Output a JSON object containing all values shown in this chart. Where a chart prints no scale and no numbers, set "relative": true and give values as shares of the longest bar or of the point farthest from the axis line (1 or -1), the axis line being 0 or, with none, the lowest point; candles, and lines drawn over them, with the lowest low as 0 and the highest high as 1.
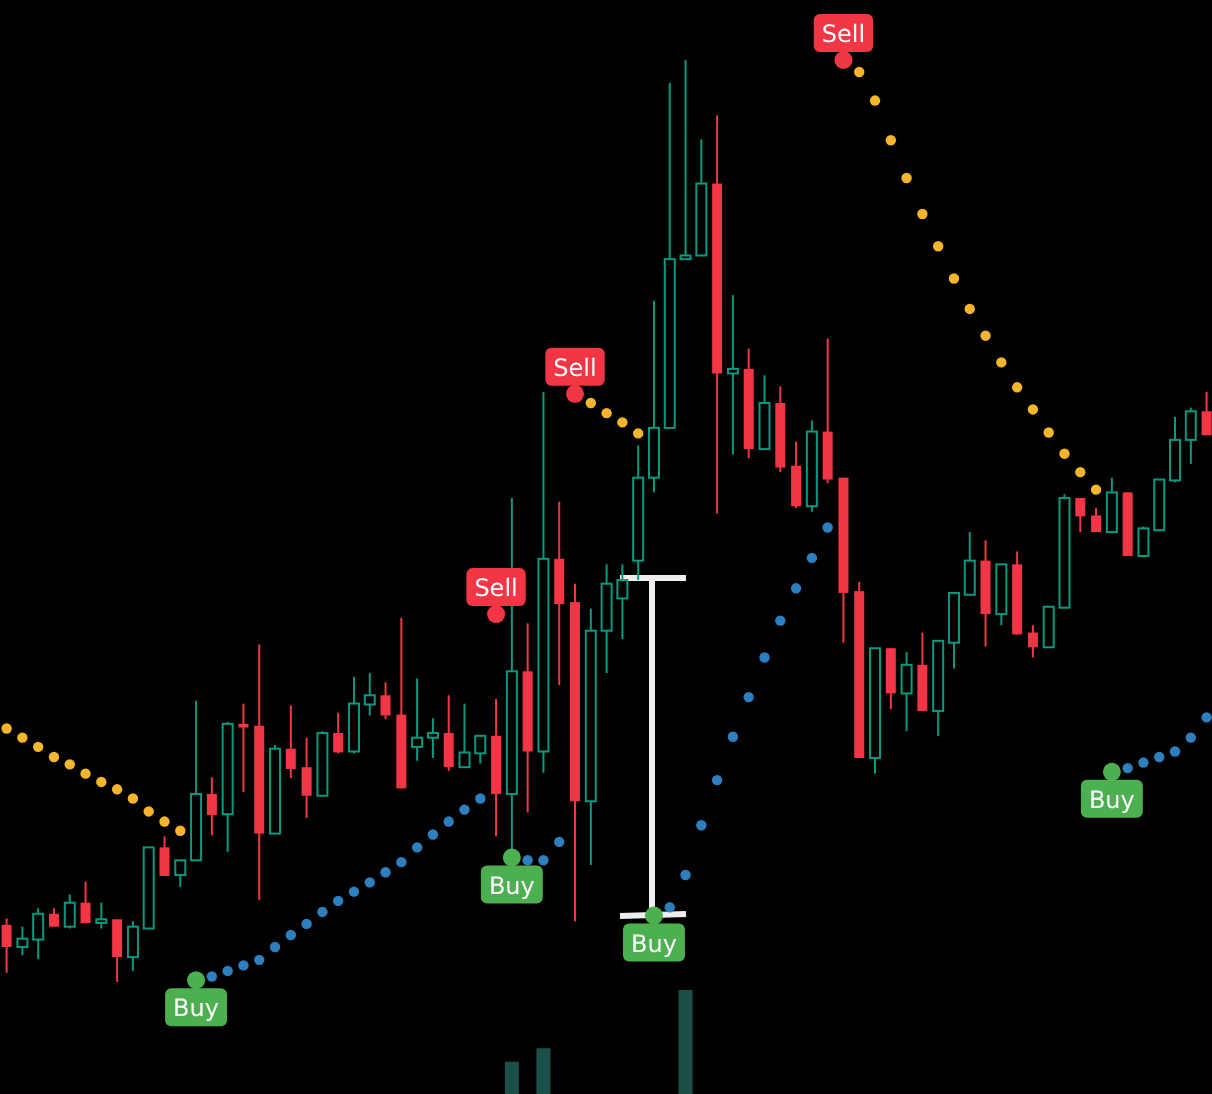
{
  "chart_data": [
    {
      "type": "candlestick",
      "relative": true,
      "marker": "circle",
      "categories": [
        null,
        null,
        null,
        null,
        null,
        null,
        null,
        null,
        null,
        null,
        null,
        null,
        null,
        null,
        null,
        null,
        null,
        null,
        null,
        null,
        null,
        null,
        null,
        null,
        null,
        null,
        null,
        null,
        null,
        null,
        null,
        null,
        null,
        null,
        null,
        null,
        null,
        null,
        null,
        null,
        null,
        null,
        null,
        null,
        null,
        null,
        null,
        null,
        null,
        null,
        null,
        null,
        null,
        null,
        null,
        null,
        null,
        null,
        null,
        null,
        null,
        null,
        null,
        null,
        null,
        null,
        null,
        null,
        null,
        null,
        null,
        null,
        null,
        null,
        null,
        null,
        null
      ],
      "ohlc": [
        [
          0.062,
          0.069,
          0.01,
          0.038
        ],
        [
          0.038,
          0.06,
          0.029,
          0.047
        ],
        [
          0.046,
          0.08,
          0.025,
          0.074
        ],
        [
          0.074,
          0.08,
          0.06,
          0.06
        ],
        [
          0.06,
          0.095,
          0.058,
          0.086
        ],
        [
          0.086,
          0.109,
          0.064,
          0.064
        ],
        [
          0.064,
          0.086,
          0.058,
          0.068
        ],
        [
          0.068,
          0.068,
          0,
          0.027
        ],
        [
          0.027,
          0.066,
          0.012,
          0.06
        ],
        [
          0.058,
          0.146,
          0.058,
          0.146
        ],
        [
          0.146,
          0.158,
          0.115,
          0.115
        ],
        [
          0.116,
          0.132,
          0.103,
          0.132
        ],
        [
          0.132,
          0.305,
          0.132,
          0.204
        ],
        [
          0.204,
          0.222,
          0.159,
          0.181
        ],
        [
          0.182,
          0.282,
          0.141,
          0.28
        ],
        [
          0.28,
          0.302,
          0.206,
          0.276
        ],
        [
          0.278,
          0.366,
          0.089,
          0.161
        ],
        [
          0.161,
          0.257,
          0.161,
          0.253
        ],
        [
          0.253,
          0.3,
          0.221,
          0.231
        ],
        [
          0.233,
          0.265,
          0.178,
          0.202
        ],
        [
          0.202,
          0.272,
          0.202,
          0.27
        ],
        [
          0.27,
          0.292,
          0.248,
          0.249
        ],
        [
          0.25,
          0.331,
          0.248,
          0.302
        ],
        [
          0.301,
          0.335,
          0.289,
          0.311
        ],
        [
          0.311,
          0.325,
          0.285,
          0.289
        ],
        [
          0.29,
          0.395,
          0.21,
          0.21
        ],
        [
          0.255,
          0.329,
          0.24,
          0.265
        ],
        [
          0.265,
          0.286,
          0.243,
          0.27
        ],
        [
          0.27,
          0.311,
          0.229,
          0.233
        ],
        [
          0.233,
          0.302,
          0.233,
          0.249
        ],
        [
          0.248,
          0.267,
          0.237,
          0.267
        ],
        [
          0.267,
          0.307,
          0.158,
          0.204
        ],
        [
          0.204,
          0.525,
          0.139,
          0.337
        ],
        [
          0.337,
          0.389,
          0.184,
          0.25
        ],
        [
          0.25,
          0.64,
          0.227,
          0.459
        ],
        [
          0.459,
          0.521,
          0.322,
          0.41
        ],
        [
          0.412,
          0.432,
          0.066,
          0.196
        ],
        [
          0.196,
          0.405,
          0.127,
          0.381
        ],
        [
          0.381,
          0.453,
          0.335,
          0.432
        ],
        [
          0.416,
          0.453,
          0.372,
          0.436
        ],
        [
          0.457,
          0.582,
          0.436,
          0.547
        ],
        [
          0.547,
          0.739,
          0.531,
          0.601
        ],
        [
          0.601,
          0.975,
          0.601,
          0.784
        ],
        [
          0.784,
          1,
          0.784,
          0.788
        ],
        [
          0.788,
          0.914,
          0.788,
          0.866
        ],
        [
          0.866,
          0.94,
          0.508,
          0.66
        ],
        [
          0.66,
          0.745,
          0.572,
          0.665
        ],
        [
          0.665,
          0.687,
          0.568,
          0.578
        ],
        [
          0.578,
          0.658,
          0.578,
          0.628
        ],
        [
          0.628,
          0.646,
          0.553,
          0.558
        ],
        [
          0.56,
          0.586,
          0.514,
          0.516
        ],
        [
          0.516,
          0.609,
          0.51,
          0.597
        ],
        [
          0.597,
          0.698,
          0.541,
          0.545
        ],
        [
          0.547,
          0.547,
          0.368,
          0.422
        ],
        [
          0.424,
          0.434,
          0.243,
          0.243
        ],
        [
          0.243,
          0.362,
          0.226,
          0.362
        ],
        [
          0.362,
          0.362,
          0.296,
          0.313
        ],
        [
          0.313,
          0.358,
          0.272,
          0.344
        ],
        [
          0.344,
          0.379,
          0.294,
          0.294
        ],
        [
          0.294,
          0.37,
          0.267,
          0.37
        ],
        [
          0.368,
          0.422,
          0.34,
          0.422
        ],
        [
          0.42,
          0.488,
          0.42,
          0.457
        ],
        [
          0.457,
          0.479,
          0.364,
          0.399
        ],
        [
          0.399,
          0.453,
          0.387,
          0.453
        ],
        [
          0.453,
          0.467,
          0.377,
          0.377
        ],
        [
          0.379,
          0.387,
          0.352,
          0.363
        ],
        [
          0.363,
          0.407,
          0.363,
          0.407
        ],
        [
          0.406,
          0.529,
          0.406,
          0.525
        ],
        [
          0.525,
          0.525,
          0.488,
          0.505
        ],
        [
          0.506,
          0.514,
          0.488,
          0.488
        ],
        [
          0.488,
          0.547,
          0.488,
          0.531
        ],
        [
          0.531,
          0.531,
          0.462,
          0.462
        ],
        [
          0.462,
          0.494,
          0.462,
          0.492
        ],
        [
          0.49,
          0.545,
          0.49,
          0.545
        ],
        [
          0.544,
          0.613,
          0.542,
          0.588
        ],
        [
          0.588,
          0.623,
          0.562,
          0.619
        ],
        [
          0.619,
          0.64,
          0.593,
          0.593
        ]
      ],
      "colors": [
        "#f23645",
        "#089981",
        "#089981",
        "#f23645",
        "#089981",
        "#f23645",
        "#089981",
        "#f23645",
        "#089981",
        "#089981",
        "#f23645",
        "#089981",
        "#089981",
        "#f23645",
        "#089981",
        "#f23645",
        "#f23645",
        "#089981",
        "#f23645",
        "#f23645",
        "#089981",
        "#f23645",
        "#089981",
        "#089981",
        "#f23645",
        "#f23645",
        "#089981",
        "#089981",
        "#f23645",
        "#089981",
        "#089981",
        "#f23645",
        "#089981",
        "#f23645",
        "#089981",
        "#f23645",
        "#f23645",
        "#089981",
        "#089981",
        "#089981",
        "#089981",
        "#089981",
        "#089981",
        "#089981",
        "#089981",
        "#f23645",
        "#089981",
        "#f23645",
        "#089981",
        "#f23645",
        "#f23645",
        "#089981",
        "#f23645",
        "#f23645",
        "#f23645",
        "#089981",
        "#f23645",
        "#089981",
        "#f23645",
        "#089981",
        "#089981",
        "#089981",
        "#f23645",
        "#089981",
        "#f23645",
        "#f23645",
        "#089981",
        "#089981",
        "#f23645",
        "#f23645",
        "#089981",
        "#f23645",
        "#089981",
        "#089981",
        "#089981",
        "#089981",
        "#f23645"
      ],
      "series": [
        {
          "type": "scatter",
          "color": "#f5b52c",
          "values": [
            0.275,
            0.265,
            0.255,
            0.244,
            0.236,
            0.226,
            0.217,
            0.209,
            0.199,
            0.185,
            0.174,
            0.164,
            null,
            null,
            null,
            null,
            null,
            null,
            null,
            null,
            null,
            null,
            null,
            null,
            null,
            null,
            null,
            null,
            null,
            null,
            null,
            null,
            null,
            null,
            null,
            null,
            null,
            0.628,
            0.617,
            0.607,
            0.595,
            null,
            null,
            null,
            null,
            null,
            null,
            null,
            null,
            null,
            null,
            null,
            null,
            null,
            0.987,
            0.956,
            0.913,
            0.872,
            0.833,
            0.798,
            0.763,
            0.73,
            0.701,
            0.672,
            0.645,
            0.621,
            0.596,
            0.573,
            0.553,
            0.534,
            null,
            null,
            null,
            null,
            null,
            null,
            null
          ]
        },
        {
          "type": "scatter",
          "color": "#2e7fc0",
          "values": [
            null,
            null,
            null,
            null,
            null,
            null,
            null,
            null,
            null,
            null,
            null,
            null,
            null,
            0.006,
            0.012,
            0.018,
            0.024,
            0.038,
            0.051,
            0.063,
            0.076,
            0.088,
            0.098,
            0.108,
            0.119,
            0.13,
            0.146,
            0.16,
            0.174,
            0.187,
            0.199,
            null,
            null,
            0.132,
            0.132,
            0.152,
            null,
            null,
            null,
            null,
            null,
            null,
            0.081,
            0.116,
            0.17,
            0.219,
            0.266,
            0.309,
            0.352,
            0.392,
            0.427,
            0.46,
            0.493,
            null,
            null,
            null,
            null,
            null,
            null,
            null,
            null,
            null,
            null,
            null,
            null,
            null,
            null,
            null,
            null,
            null,
            null,
            0.232,
            0.238,
            0.244,
            0.25,
            0.265,
            0.287
          ]
        },
        {
          "name": "Buy",
          "type": "scatter",
          "color": "#4caf50",
          "values": [
            null,
            null,
            null,
            null,
            null,
            null,
            null,
            null,
            null,
            null,
            null,
            null,
            0.002,
            null,
            null,
            null,
            null,
            null,
            null,
            null,
            null,
            null,
            null,
            null,
            null,
            null,
            null,
            null,
            null,
            null,
            null,
            null,
            0.135,
            null,
            null,
            null,
            null,
            null,
            null,
            null,
            null,
            0.072,
            null,
            null,
            null,
            null,
            null,
            null,
            null,
            null,
            null,
            null,
            null,
            null,
            null,
            null,
            null,
            null,
            null,
            null,
            null,
            null,
            null,
            null,
            null,
            null,
            null,
            null,
            null,
            null,
            0.228,
            null,
            null,
            null,
            null,
            null,
            null
          ]
        },
        {
          "name": "Sell",
          "type": "scatter",
          "color": "#f23645",
          "values": [
            null,
            null,
            null,
            null,
            null,
            null,
            null,
            null,
            null,
            null,
            null,
            null,
            null,
            null,
            null,
            null,
            null,
            null,
            null,
            null,
            null,
            null,
            null,
            null,
            null,
            null,
            null,
            null,
            null,
            null,
            null,
            0.399,
            null,
            null,
            null,
            null,
            0.638,
            null,
            null,
            null,
            null,
            null,
            null,
            null,
            null,
            null,
            null,
            null,
            null,
            null,
            null,
            null,
            null,
            1,
            null,
            null,
            null,
            null,
            null,
            null,
            null,
            null,
            null,
            null,
            null,
            null,
            null,
            null,
            null,
            null,
            null,
            null,
            null,
            null,
            null,
            null,
            null
          ]
        }
      ]
    },
    {
      "type": "bar",
      "relative": true,
      "color": "#1b4f47",
      "categories": [
        null,
        null,
        null,
        null,
        null,
        null,
        null,
        null,
        null,
        null,
        null,
        null,
        null,
        null,
        null,
        null,
        null,
        null,
        null,
        null,
        null,
        null,
        null,
        null,
        null,
        null,
        null,
        null,
        null,
        null,
        null,
        null,
        null,
        null,
        null,
        null,
        null,
        null,
        null,
        null,
        null,
        null,
        null,
        null,
        null,
        null,
        null,
        null,
        null,
        null,
        null,
        null,
        null,
        null,
        null,
        null,
        null,
        null,
        null,
        null,
        null,
        null,
        null,
        null,
        null,
        null,
        null,
        null,
        null,
        null,
        null,
        null,
        null,
        null,
        null,
        null,
        null
      ],
      "values": [
        null,
        null,
        null,
        null,
        null,
        null,
        null,
        null,
        null,
        null,
        null,
        null,
        null,
        null,
        null,
        null,
        null,
        null,
        null,
        null,
        null,
        null,
        null,
        null,
        null,
        null,
        null,
        null,
        null,
        null,
        null,
        null,
        0.31,
        null,
        0.44,
        null,
        null,
        null,
        null,
        null,
        null,
        null,
        null,
        1,
        null,
        null,
        null,
        null,
        null,
        null,
        null,
        null,
        null,
        null,
        null,
        null,
        null,
        null,
        null,
        null,
        null,
        null,
        null,
        null,
        null,
        null,
        null,
        null,
        null,
        null,
        null,
        null,
        null,
        null,
        null,
        null,
        null
      ]
    }
  ]
}
